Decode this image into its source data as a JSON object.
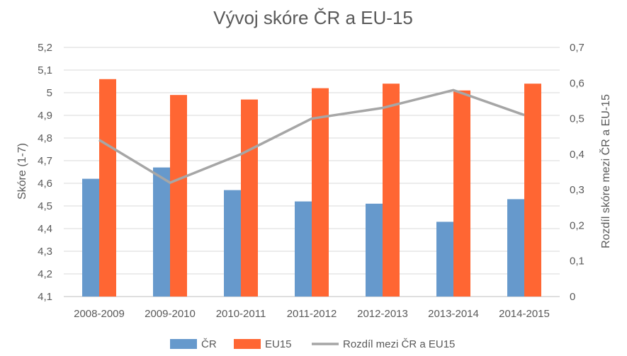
{
  "chart_data": {
    "type": "bar",
    "title": "Vývoj skóre ČR a EU-15",
    "categories": [
      "2008-2009",
      "2009-2010",
      "2010-2011",
      "2011-2012",
      "2012-2013",
      "2013-2014",
      "2014-2015"
    ],
    "series": [
      {
        "name": "ČR",
        "type": "bar",
        "axis": "left",
        "color": "#6699cc",
        "values": [
          4.62,
          4.67,
          4.57,
          4.52,
          4.51,
          4.43,
          4.53
        ]
      },
      {
        "name": "EU15",
        "type": "bar",
        "axis": "left",
        "color": "#ff6633",
        "values": [
          5.06,
          4.99,
          4.97,
          5.02,
          5.04,
          5.01,
          5.04
        ]
      },
      {
        "name": "Rozdíl mezi ČR a EU15",
        "type": "line",
        "axis": "right",
        "color": "#a6a6a6",
        "values": [
          0.44,
          0.32,
          0.4,
          0.5,
          0.53,
          0.58,
          0.51
        ]
      }
    ],
    "ylabel": "Skóre (1-7)",
    "y2label": "Rozdíl skóre mezi ČR a EU-15",
    "ylim": [
      4.1,
      5.2
    ],
    "y2lim": [
      0,
      0.7
    ],
    "yticks": [
      "4,1",
      "4,2",
      "4,3",
      "4,4",
      "4,5",
      "4,6",
      "4,7",
      "4,8",
      "4,9",
      "5",
      "5,1",
      "5,2"
    ],
    "y2ticks": [
      "0",
      "0,1",
      "0,2",
      "0,3",
      "0,4",
      "0,5",
      "0,6",
      "0,7"
    ],
    "grid": true,
    "legend_position": "bottom"
  }
}
